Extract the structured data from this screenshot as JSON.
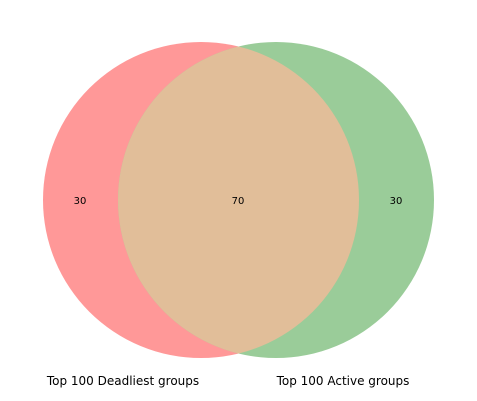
{
  "venn": {
    "sets": [
      {
        "name": "Top 100 Deadliest groups",
        "color": "#ff9898"
      },
      {
        "name": "Top 100 Active groups",
        "color": "#9acc99"
      }
    ],
    "overlap_color": "#e1be99",
    "counts": {
      "only_a": "30",
      "both": "70",
      "only_b": "30"
    }
  }
}
